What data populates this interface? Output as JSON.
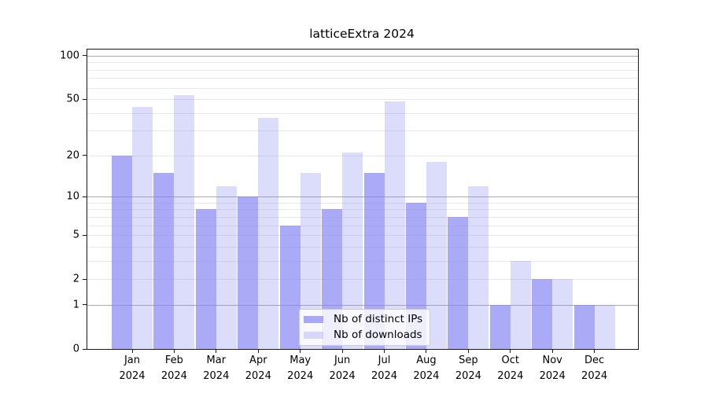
{
  "chart_data": {
    "type": "bar",
    "title": "latticeExtra 2024",
    "months": [
      "Jan",
      "Feb",
      "Mar",
      "Apr",
      "May",
      "Jun",
      "Jul",
      "Aug",
      "Sep",
      "Oct",
      "Nov",
      "Dec"
    ],
    "year": "2024",
    "series": [
      {
        "name": "Nb of distinct IPs",
        "values": [
          20,
          15,
          8,
          10,
          6,
          8,
          15,
          9,
          7,
          1,
          2,
          1
        ],
        "color": "rgba(130,130,242,0.68)"
      },
      {
        "name": "Nb of downloads",
        "values": [
          44,
          53,
          12,
          37,
          15,
          21,
          48,
          18,
          12,
          3,
          2,
          1
        ],
        "color": "rgba(130,130,242,0.28)"
      }
    ],
    "y_scale": "log10(value+1)",
    "y_ticks": [
      0,
      1,
      2,
      5,
      10,
      20,
      50,
      100
    ],
    "major_gridlines": [
      1,
      10,
      100
    ],
    "minor_gridlines": [
      2,
      3,
      4,
      5,
      6,
      7,
      8,
      9,
      20,
      30,
      40,
      50,
      60,
      70,
      80,
      90
    ],
    "ylim": [
      0,
      110
    ],
    "grid_on": true,
    "legend_position": "bottom-center-inside",
    "colors": {
      "bar_base": "#8282f2",
      "bar_dark_on_white": "#aaaaf6",
      "bar_light_on_white": "#dcdcfb",
      "grid_major": "#ababab",
      "grid_minor": "#e8e8e8",
      "axis": "#1a1a1a",
      "legend_border": "#cccccc"
    }
  }
}
